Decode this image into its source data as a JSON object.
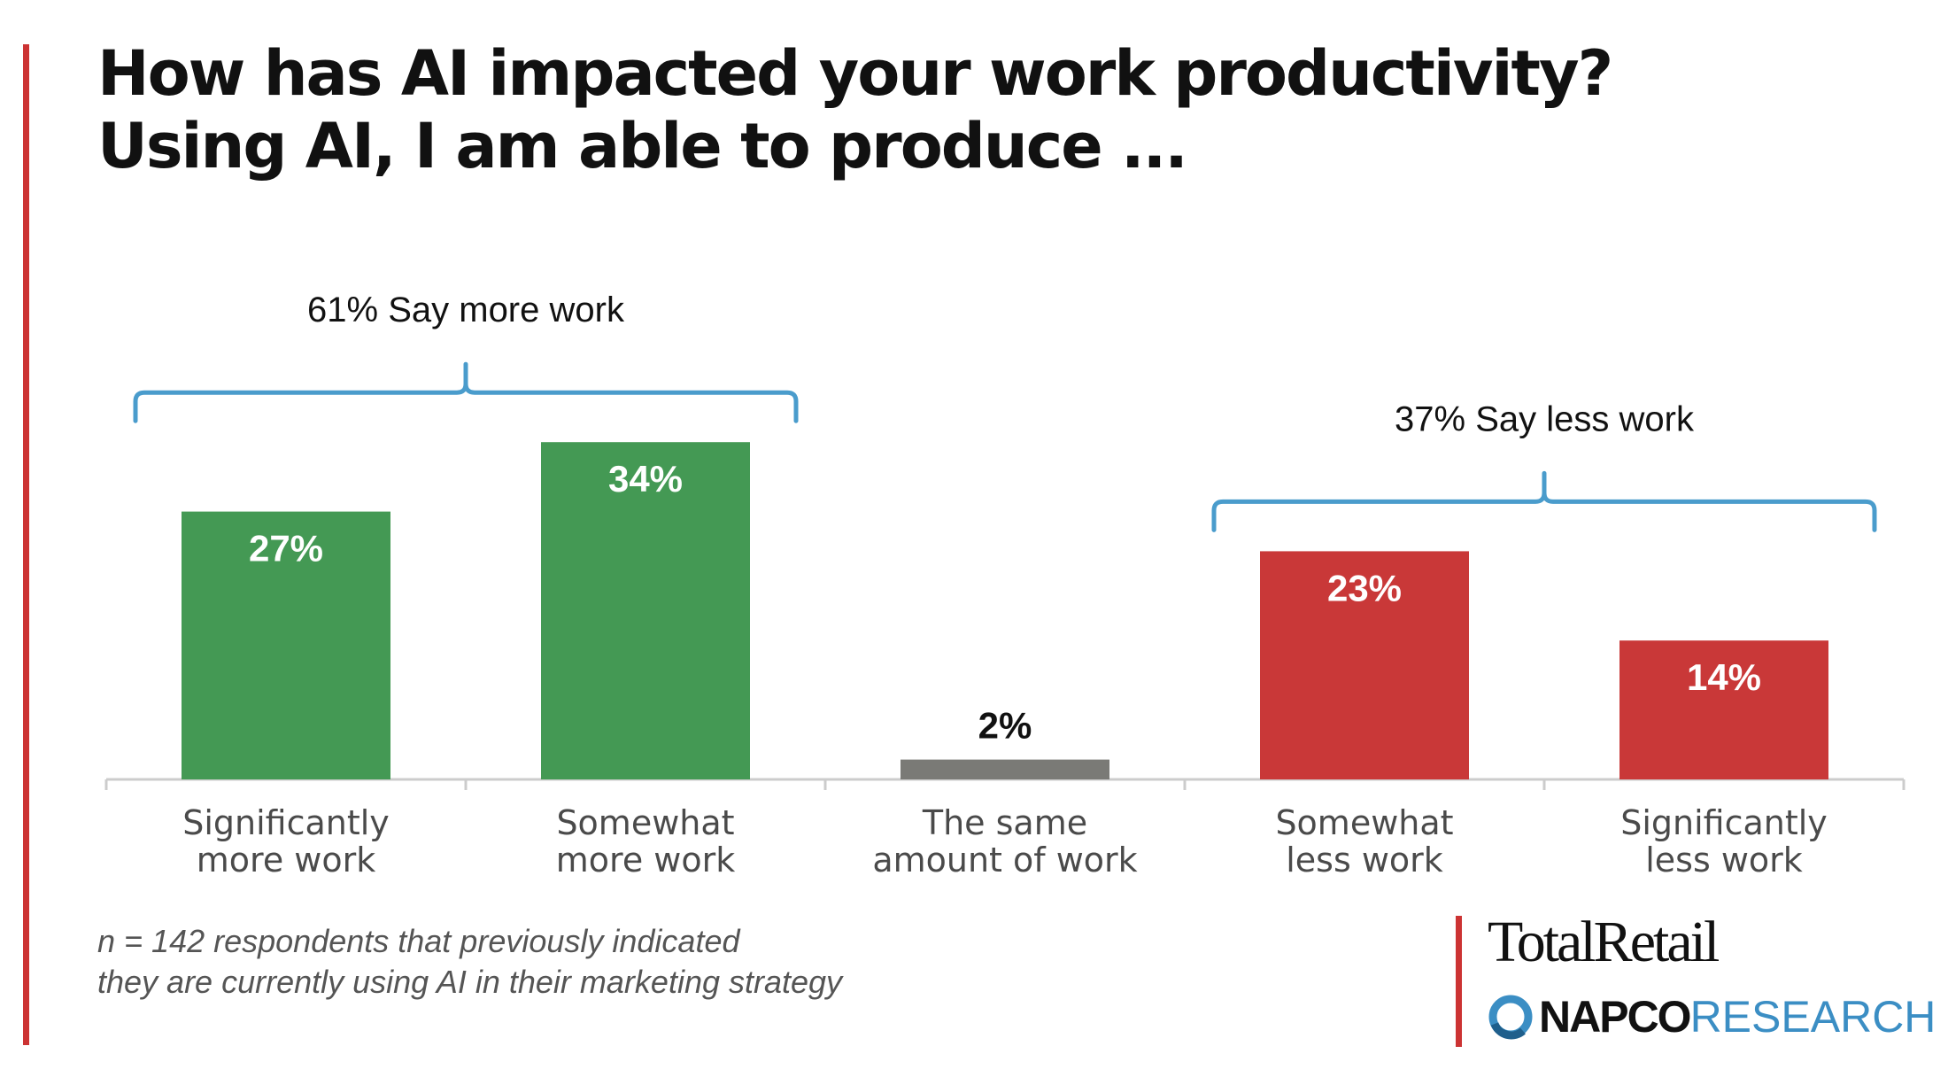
{
  "title_lines": [
    "How has AI impacted your work productivity?",
    "Using AI, I am able to produce ..."
  ],
  "chart_data": {
    "type": "bar",
    "categories": [
      [
        "Significantly",
        "more work"
      ],
      [
        "Somewhat",
        "more work"
      ],
      [
        "The same",
        "amount of work"
      ],
      [
        "Somewhat",
        "less work"
      ],
      [
        "Significantly",
        "less work"
      ]
    ],
    "values": [
      27,
      34,
      2,
      23,
      14
    ],
    "value_labels": [
      "27%",
      "34%",
      "2%",
      "23%",
      "14%"
    ],
    "bar_colors": [
      "#449954",
      "#449954",
      "#7a7a76",
      "#c93838",
      "#c93838"
    ],
    "value_label_colors": [
      "#ffffff",
      "#ffffff",
      "#111111",
      "#ffffff",
      "#ffffff"
    ],
    "unit": "%",
    "ylim": [
      0,
      40
    ],
    "groups": [
      {
        "label": "61% Say more work",
        "from": 0,
        "to": 1
      },
      {
        "label": "37% Say less work",
        "from": 3,
        "to": 4
      }
    ],
    "bracket_color": "#4a9ccc"
  },
  "footnote_lines": [
    "n = 142 respondents that previously indicated",
    "they are currently using AI in their marketing strategy"
  ],
  "logos": {
    "total_retail": "TotalRetail",
    "napco_bold": "NAPCO",
    "napco_light": "RESEARCH"
  },
  "colors": {
    "accent": "#cc3333",
    "napco_blue": "#3b8ec4"
  }
}
